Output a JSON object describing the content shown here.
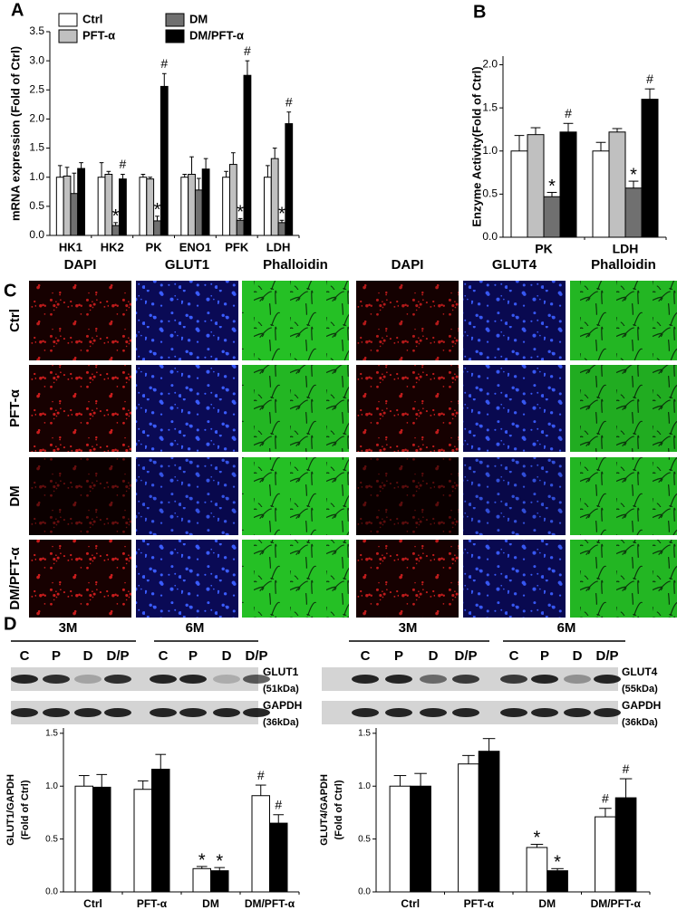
{
  "chart_data": [
    {
      "type": "bar",
      "panel": "A",
      "ylabel": "mRNA expression (Fold of Ctrl)",
      "categories": [
        "HK1",
        "HK2",
        "PK",
        "ENO1",
        "PFK",
        "LDH"
      ],
      "ylim": [
        0,
        3.5
      ],
      "yticks": [
        {
          "value": 0,
          "label": "0.0"
        },
        0.5,
        {
          "value": 1,
          "label": "1.0"
        },
        1.5,
        {
          "value": 2,
          "label": "2.0"
        },
        2.5,
        {
          "value": 3,
          "label": "3.0"
        },
        3.5
      ],
      "legend": "top-left",
      "series": [
        {
          "name": "Ctrl",
          "color": "#ffffff",
          "values": [
            1.0,
            1.0,
            1.0,
            1.0,
            1.0,
            1.0
          ],
          "errors": [
            0.2,
            0.25,
            0.05,
            0.05,
            0.1,
            0.2
          ],
          "markers": [
            null,
            null,
            null,
            null,
            null,
            null
          ]
        },
        {
          "name": "PFT-α",
          "color": "#c0c0c0",
          "values": [
            1.02,
            1.05,
            0.97,
            1.05,
            1.22,
            1.32
          ],
          "errors": [
            0.15,
            0.05,
            0.03,
            0.3,
            0.2,
            0.18
          ],
          "markers": [
            null,
            null,
            null,
            null,
            null,
            null
          ]
        },
        {
          "name": "DM",
          "color": "#707070",
          "values": [
            0.72,
            0.17,
            0.25,
            0.78,
            0.26,
            0.22
          ],
          "errors": [
            0.35,
            0.05,
            0.08,
            0.2,
            0.03,
            0.04
          ],
          "markers": [
            null,
            "*",
            "*",
            null,
            "*",
            "*"
          ]
        },
        {
          "name": "DM/PFT-α",
          "color": "#000000",
          "values": [
            1.15,
            0.97,
            2.56,
            1.14,
            2.75,
            1.92
          ],
          "errors": [
            0.1,
            0.08,
            0.22,
            0.18,
            0.25,
            0.2
          ],
          "markers": [
            null,
            "#",
            "#",
            null,
            "#",
            "#"
          ]
        }
      ]
    },
    {
      "type": "bar",
      "panel": "B",
      "ylabel": "Enzyme Activity(Fold of Ctrl)",
      "categories": [
        "PK",
        "LDH"
      ],
      "ylim": [
        0,
        2.1
      ],
      "yticks": [
        {
          "value": 0,
          "label": "0.0"
        },
        0.5,
        {
          "value": 1,
          "label": "1.0"
        },
        1.5,
        {
          "value": 2,
          "label": "2.0"
        }
      ],
      "series": [
        {
          "color": "#ffffff",
          "values": [
            1.0,
            1.0
          ],
          "errors": [
            0.18,
            0.1
          ],
          "markers": [
            null,
            null
          ]
        },
        {
          "color": "#c0c0c0",
          "values": [
            1.19,
            1.22
          ],
          "errors": [
            0.08,
            0.04
          ],
          "markers": [
            null,
            null
          ]
        },
        {
          "color": "#707070",
          "values": [
            0.47,
            0.57
          ],
          "errors": [
            0.05,
            0.08
          ],
          "markers": [
            "*",
            "*"
          ]
        },
        {
          "color": "#000000",
          "values": [
            1.22,
            1.6
          ],
          "errors": [
            0.1,
            0.12
          ],
          "markers": [
            "#",
            "#"
          ]
        }
      ]
    },
    {
      "type": "bar",
      "ylabel": [
        "GLUT1/GAPDH",
        "(Fold of Ctrl)"
      ],
      "categories": [
        "Ctrl",
        "PFT-α",
        "DM",
        "DM/PFT-α"
      ],
      "ylim": [
        0,
        1.55
      ],
      "yticks": [
        {
          "value": 0,
          "label": "0.0"
        },
        0.5,
        {
          "value": 1,
          "label": "1.0"
        },
        1.5
      ],
      "series": [
        {
          "color": "#ffffff",
          "values": [
            1.0,
            0.97,
            0.22,
            0.91
          ],
          "errors": [
            0.1,
            0.08,
            0.02,
            0.1
          ],
          "markers": [
            null,
            null,
            "*",
            "#"
          ]
        },
        {
          "color": "#000000",
          "values": [
            0.99,
            1.16,
            0.2,
            0.65
          ],
          "errors": [
            0.12,
            0.14,
            0.03,
            0.08
          ],
          "markers": [
            null,
            null,
            "*",
            "#"
          ]
        }
      ]
    },
    {
      "type": "bar",
      "ylabel": [
        "GLUT4/GAPDH",
        "(Fold of Ctrl)"
      ],
      "categories": [
        "Ctrl",
        "PFT-α",
        "DM",
        "DM/PFT-α"
      ],
      "ylim": [
        0,
        1.55
      ],
      "yticks": [
        {
          "value": 0,
          "label": "0.0"
        },
        0.5,
        {
          "value": 1,
          "label": "1.0"
        },
        1.5
      ],
      "series": [
        {
          "color": "#ffffff",
          "values": [
            1.0,
            1.21,
            0.42,
            0.71
          ],
          "errors": [
            0.1,
            0.08,
            0.03,
            0.08
          ],
          "markers": [
            null,
            null,
            "*",
            "#"
          ]
        },
        {
          "color": "#000000",
          "values": [
            1.0,
            1.33,
            0.2,
            0.89
          ],
          "errors": [
            0.12,
            0.12,
            0.02,
            0.18
          ],
          "markers": [
            null,
            null,
            "*",
            "#"
          ]
        }
      ]
    }
  ],
  "panel_c": {
    "panel": "C",
    "groups": [
      {
        "columns": [
          "DAPI",
          "GLUT1",
          "Phalloidin"
        ]
      },
      {
        "columns": [
          "DAPI",
          "GLUT4",
          "Phalloidin"
        ]
      }
    ],
    "rows": [
      "Ctrl",
      "PFT-α",
      "DM",
      "DM/PFT-α"
    ]
  },
  "blots": {
    "panel": "D",
    "left": {
      "periods": [
        "3M",
        "6M"
      ],
      "lanes": [
        "C",
        "P",
        "D",
        "D/P",
        "C",
        "P",
        "D",
        "D/P"
      ],
      "bands": [
        {
          "name": "GLUT1",
          "size": "(51kDa)"
        },
        {
          "name": "GAPDH",
          "size": "(36kDa)"
        }
      ]
    },
    "right": {
      "periods": [
        "3M",
        "6M"
      ],
      "lanes": [
        "C",
        "P",
        "D",
        "D/P",
        "C",
        "P",
        "D",
        "D/P"
      ],
      "bands": [
        {
          "name": "GLUT4",
          "size": "(55kDa)"
        },
        {
          "name": "GAPDH",
          "size": "(36kDa)"
        }
      ]
    }
  }
}
